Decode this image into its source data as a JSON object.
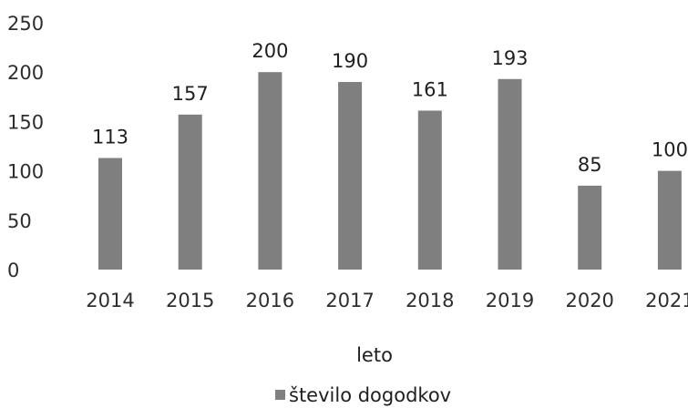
{
  "chart_data": {
    "type": "bar",
    "categories": [
      "2014",
      "2015",
      "2016",
      "2017",
      "2018",
      "2019",
      "2020",
      "2021"
    ],
    "series": [
      {
        "name": "število dogodkov",
        "values": [
          113,
          157,
          200,
          190,
          161,
          193,
          85,
          100
        ],
        "color": "#7f7f7f"
      }
    ],
    "data_labels": [
      "113",
      "157",
      "200",
      "190",
      "161",
      "193",
      "85",
      "100"
    ],
    "xlabel": "leto",
    "ylabel": "",
    "ylim": [
      0,
      250
    ],
    "yticks": [
      0,
      50,
      100,
      150,
      200,
      250
    ],
    "ytick_labels": [
      "0",
      "50",
      "100",
      "150",
      "200",
      "250"
    ],
    "grid": false,
    "legend": "bottom"
  }
}
